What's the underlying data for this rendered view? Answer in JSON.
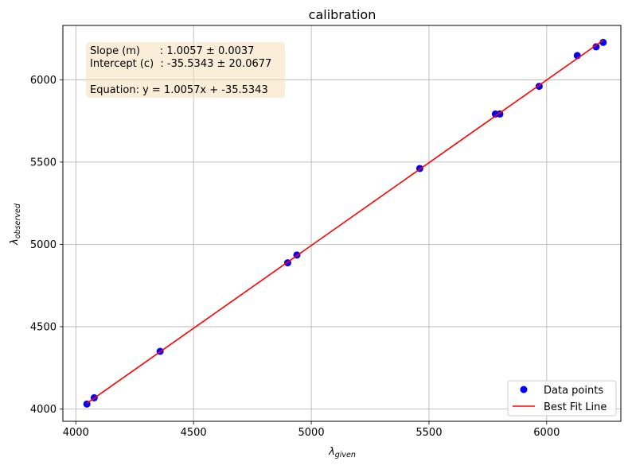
{
  "chart_data": {
    "type": "scatter",
    "title": "calibration",
    "xlabel": {
      "main": "λ",
      "sub": "given"
    },
    "ylabel": {
      "main": "λ",
      "sub": "observed"
    },
    "xlim": [
      3945,
      6315
    ],
    "ylim": [
      3925,
      6330
    ],
    "xticks": [
      4000,
      4500,
      5000,
      5500,
      6000
    ],
    "yticks": [
      4000,
      4500,
      5000,
      5500,
      6000
    ],
    "grid": true,
    "legend_position": "lower-right",
    "series": [
      {
        "name": "Data points",
        "kind": "scatter",
        "color": "#0000ff",
        "x": [
          4047,
          4078,
          4358,
          4900,
          4939,
          5461,
          5782,
          5801,
          5968,
          6130,
          6210,
          6240
        ],
        "y": [
          4030,
          4068,
          4350,
          4888,
          4935,
          5461,
          5792,
          5792,
          5960,
          6147,
          6200,
          6227
        ]
      },
      {
        "name": "Best Fit Line",
        "kind": "line",
        "color": "#ff0000",
        "slope": 1.0057,
        "intercept": -35.5343,
        "x_range": [
          4047,
          6240
        ]
      }
    ],
    "annotation": {
      "position": "top-left",
      "lines": [
        "Slope (m)      : 1.0057 ± 0.0037",
        "Intercept (c)  : -35.5343 ± 20.0677",
        "",
        "Equation: y = 1.0057x + -35.5343"
      ],
      "box_fill": "#f5deb3",
      "box_stroke": "#000000"
    }
  }
}
